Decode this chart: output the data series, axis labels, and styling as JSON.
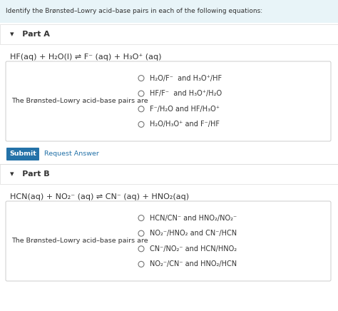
{
  "bg_header": "#e8f4f8",
  "bg_white": "#ffffff",
  "bg_page": "#f2f2f2",
  "bg_part_header": "#f5f5f5",
  "header_text": "Identify the Brønsted–Lowry acid–base pairs in each of the following equations:",
  "part_a_label": "▾   Part A",
  "part_a_equation": "HF(aq) + H₂O(l) ⇌ F⁻ (aq) + H₃O⁺ (aq)",
  "part_a_label_box": "The Brønsted–Lowry acid–base pairs are",
  "part_a_options": [
    "H₂O/F⁻  and H₃O⁺/HF",
    "HF/F⁻  and H₃O⁺/H₂O",
    "F⁻/H₂O and HF/H₃O⁺",
    "H₂O/H₃O⁺ and F⁻/HF"
  ],
  "submit_text": "Submit",
  "request_text": "Request Answer",
  "part_b_label": "▾   Part B",
  "part_b_equation": "HCN(aq) + NO₂⁻ (aq) ⇌ CN⁻ (aq) + HNO₂(aq)",
  "part_b_label_box": "The Brønsted–Lowry acid–base pairs are",
  "part_b_options": [
    "HCN/CN⁻ and HNO₂/NO₂⁻",
    "NO₂⁻/HNO₂ and CN⁻/HCN",
    "CN⁻/NO₂⁻ and HCN/HNO₂",
    "NO₂⁻/CN⁻ and HNO₂/HCN"
  ],
  "font_size_header": 6.5,
  "font_size_part": 8.0,
  "font_size_eq": 8.0,
  "font_size_option": 7.0,
  "font_size_label_box": 6.8,
  "font_size_submit": 6.8,
  "submit_bg": "#2472a8",
  "submit_fg": "#ffffff",
  "circle_color": "#777777",
  "text_color": "#333333",
  "border_color": "#cccccc",
  "part_border_color": "#dddddd"
}
